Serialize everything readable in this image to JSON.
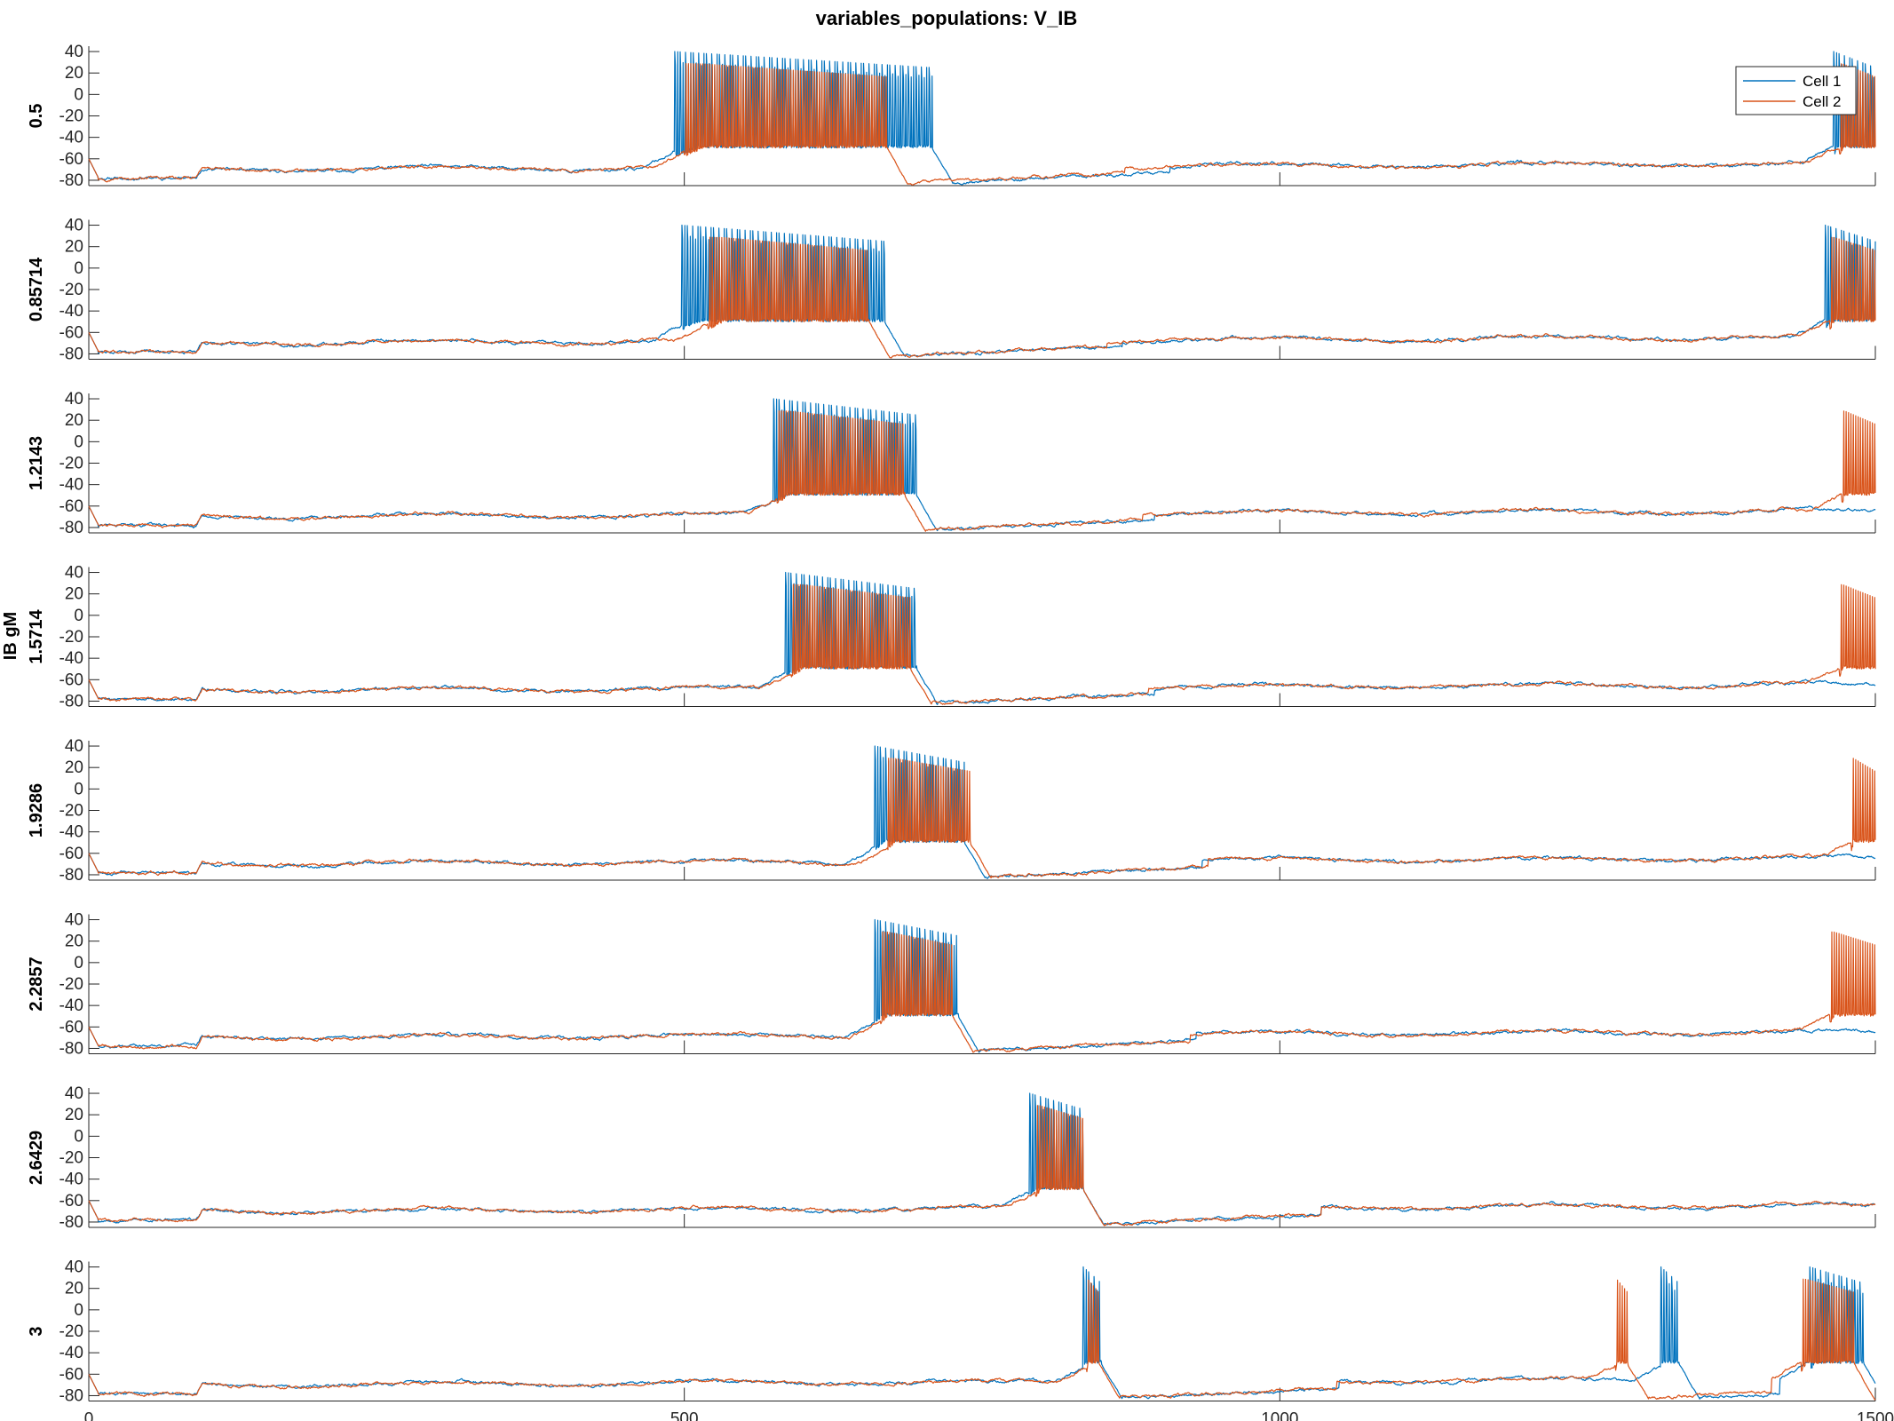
{
  "chart_data": {
    "type": "line",
    "title": "variables_populations: V_IB",
    "ylabel": "IB gM",
    "xlim": [
      0,
      1500
    ],
    "ylim": [
      -85,
      45
    ],
    "x_ticks": [
      0,
      500,
      1000,
      1500
    ],
    "y_ticks": [
      40,
      20,
      0,
      -20,
      -40,
      -60,
      -80
    ],
    "legend": {
      "placement": "top-right",
      "entries": [
        "Cell 1",
        "Cell 2"
      ]
    },
    "colors": {
      "cell1": "#0072BD",
      "cell2": "#D95319"
    },
    "series": [
      {
        "name": "Cell 1"
      },
      {
        "name": "Cell 2"
      }
    ],
    "panels": [
      {
        "label": "0.5",
        "cell1_bursts": [
          [
            492,
            708
          ],
          [
            1465,
            1500
          ]
        ],
        "cell2_bursts": [
          [
            500,
            670
          ],
          [
            1470,
            1500
          ]
        ]
      },
      {
        "label": "0.85714",
        "cell1_bursts": [
          [
            498,
            668
          ],
          [
            1458,
            1500
          ]
        ],
        "cell2_bursts": [
          [
            520,
            655
          ],
          [
            1462,
            1500
          ]
        ]
      },
      {
        "label": "1.2143",
        "cell1_bursts": [
          [
            575,
            695
          ]
        ],
        "cell2_bursts": [
          [
            578,
            685
          ],
          [
            1472,
            1500
          ]
        ]
      },
      {
        "label": "1.5714",
        "cell1_bursts": [
          [
            585,
            695
          ]
        ],
        "cell2_bursts": [
          [
            590,
            690
          ],
          [
            1470,
            1500
          ]
        ]
      },
      {
        "label": "1.9286",
        "cell1_bursts": [
          [
            660,
            735
          ]
        ],
        "cell2_bursts": [
          [
            670,
            740
          ],
          [
            1480,
            1500
          ]
        ]
      },
      {
        "label": "2.2857",
        "cell1_bursts": [
          [
            660,
            730
          ]
        ],
        "cell2_bursts": [
          [
            665,
            725
          ],
          [
            1462,
            1500
          ]
        ]
      },
      {
        "label": "2.6429",
        "cell1_bursts": [
          [
            790,
            835
          ]
        ],
        "cell2_bursts": [
          [
            795,
            835
          ]
        ]
      },
      {
        "label": "3",
        "cell1_bursts": [
          [
            835,
            850
          ],
          [
            1320,
            1335
          ],
          [
            1445,
            1490
          ]
        ],
        "cell2_bursts": [
          [
            838,
            848
          ],
          [
            1282,
            1292
          ],
          [
            1438,
            1482
          ]
        ]
      }
    ]
  }
}
